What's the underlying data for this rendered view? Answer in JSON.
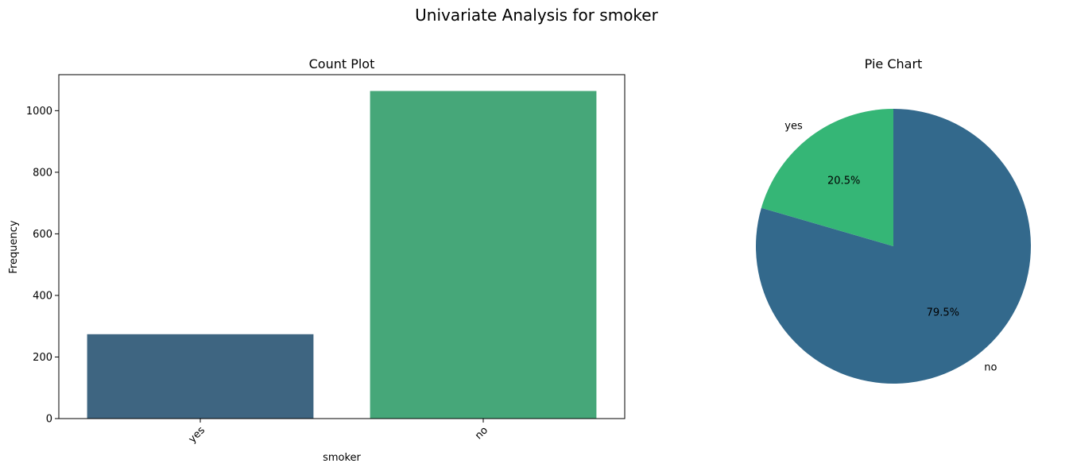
{
  "figure": {
    "title": "Univariate Analysis for smoker"
  },
  "chart_data": [
    {
      "type": "bar",
      "title": "Count Plot",
      "xlabel": "smoker",
      "ylabel": "Frequency",
      "categories": [
        "yes",
        "no"
      ],
      "values": [
        274,
        1064
      ],
      "colors": [
        "#3e6581",
        "#46a779"
      ],
      "ylim": [
        0,
        1117
      ],
      "yticks": [
        0,
        200,
        400,
        600,
        800,
        1000
      ],
      "xtick_rotation_deg": 45,
      "grid": false
    },
    {
      "type": "pie",
      "title": "Pie Chart",
      "labels": [
        "no",
        "yes"
      ],
      "percent_labels": [
        "79.5%",
        "20.5%"
      ],
      "values": [
        79.5,
        20.5
      ],
      "colors": [
        "#33698c",
        "#35b676"
      ],
      "start_angle_deg": 90,
      "direction": "clockwise"
    }
  ]
}
